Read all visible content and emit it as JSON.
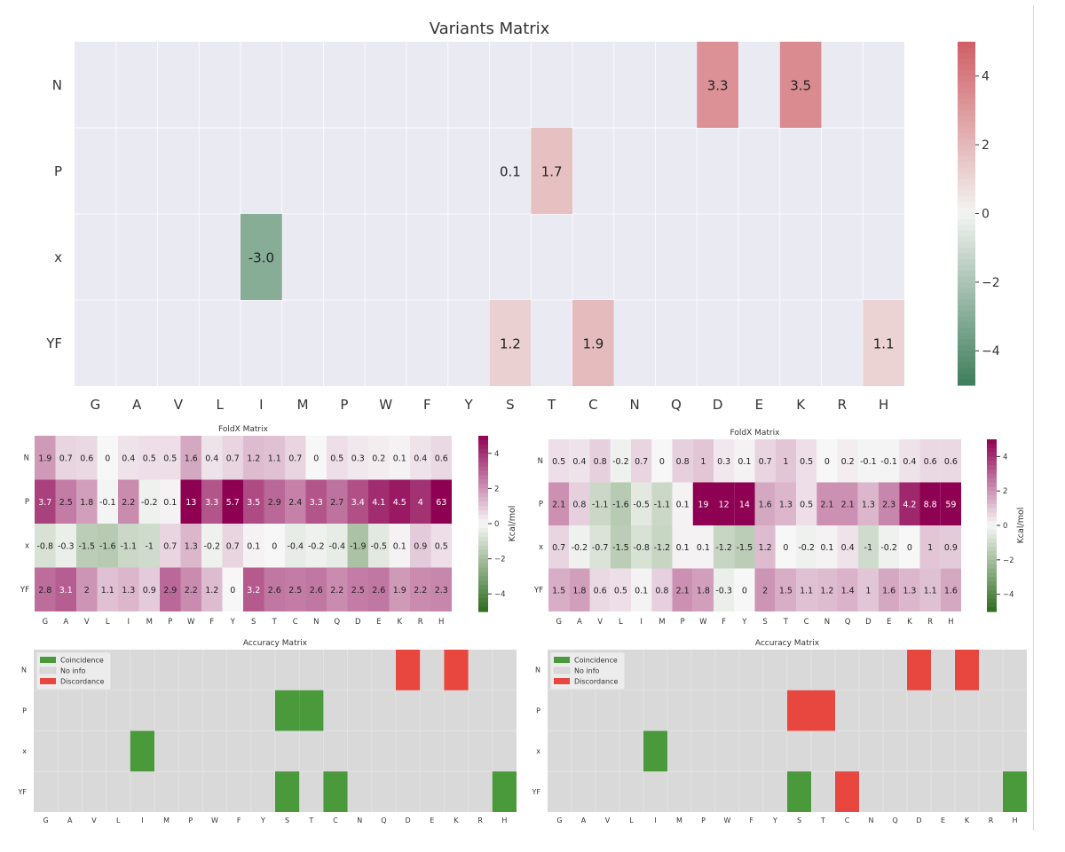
{
  "chart_data": [
    {
      "id": "variants",
      "type": "heatmap",
      "title": "Variants Matrix",
      "x_categories": [
        "G",
        "A",
        "V",
        "L",
        "I",
        "M",
        "P",
        "W",
        "F",
        "Y",
        "S",
        "T",
        "C",
        "N",
        "Q",
        "D",
        "E",
        "K",
        "R",
        "H"
      ],
      "y_categories": [
        "N",
        "P",
        "x",
        "YF"
      ],
      "values": [
        [
          null,
          null,
          null,
          null,
          null,
          null,
          null,
          null,
          null,
          null,
          null,
          null,
          null,
          null,
          null,
          3.3,
          null,
          3.5,
          null,
          null
        ],
        [
          null,
          null,
          null,
          null,
          null,
          null,
          null,
          null,
          null,
          null,
          0.1,
          1.7,
          null,
          null,
          null,
          null,
          null,
          null,
          null,
          null
        ],
        [
          null,
          null,
          null,
          null,
          -3.0,
          null,
          null,
          null,
          null,
          null,
          null,
          null,
          null,
          null,
          null,
          null,
          null,
          null,
          null,
          null
        ],
        [
          null,
          null,
          null,
          null,
          null,
          null,
          null,
          null,
          null,
          null,
          1.2,
          null,
          1.9,
          null,
          null,
          null,
          null,
          null,
          null,
          1.1
        ]
      ],
      "labels": [
        [
          null,
          null,
          null,
          null,
          null,
          null,
          null,
          null,
          null,
          null,
          null,
          null,
          null,
          null,
          null,
          "3.3",
          null,
          "3.5",
          null,
          null
        ],
        [
          null,
          null,
          null,
          null,
          null,
          null,
          null,
          null,
          null,
          null,
          "0.1",
          "1.7",
          null,
          null,
          null,
          null,
          null,
          null,
          null,
          null
        ],
        [
          null,
          null,
          null,
          null,
          "-3.0",
          null,
          null,
          null,
          null,
          null,
          null,
          null,
          null,
          null,
          null,
          null,
          null,
          null,
          null,
          null
        ],
        [
          null,
          null,
          null,
          null,
          null,
          null,
          null,
          null,
          null,
          null,
          "1.2",
          null,
          "1.9",
          null,
          null,
          null,
          null,
          null,
          null,
          "1.1"
        ]
      ],
      "colorbar": {
        "range": [
          -5,
          5
        ],
        "ticks": [
          "4",
          "2",
          "0",
          "−2",
          "−4"
        ],
        "tick_values": [
          4,
          2,
          0,
          -2,
          -4
        ],
        "colormap": "green-white-red",
        "label": ""
      },
      "colors": {
        "low": "#3f7d5b",
        "mid": "#f3f4f2",
        "high": "#cf5e66",
        "background": "#eaeaf2",
        "grid": "#ffffff"
      }
    },
    {
      "id": "foldx_left",
      "type": "heatmap",
      "title": "FoldX Matrix",
      "x_categories": [
        "G",
        "A",
        "V",
        "L",
        "I",
        "M",
        "P",
        "W",
        "F",
        "Y",
        "S",
        "T",
        "C",
        "N",
        "Q",
        "D",
        "E",
        "K",
        "R",
        "H"
      ],
      "y_categories": [
        "N",
        "P",
        "x",
        "YF"
      ],
      "values": [
        [
          1.9,
          0.7,
          0.6,
          0,
          0.4,
          0.5,
          0.5,
          1.6,
          0.4,
          0.7,
          1.2,
          1.1,
          0.7,
          0,
          0.5,
          0.3,
          0.2,
          0.1,
          0.4,
          0.6
        ],
        [
          3.7,
          2.5,
          1.8,
          -0.1,
          2.2,
          -0.2,
          0.1,
          13,
          3.3,
          5.7,
          3.5,
          2.9,
          2.4,
          3.3,
          2.7,
          3.4,
          4.1,
          4.5,
          4,
          63
        ],
        [
          -0.8,
          -0.3,
          -1.5,
          -1.6,
          -1.1,
          -1,
          0.7,
          1.3,
          -0.2,
          0.7,
          0.1,
          0,
          -0.4,
          -0.2,
          -0.4,
          -1.9,
          -0.5,
          0.1,
          0.9,
          0.5
        ],
        [
          2.8,
          3.1,
          2,
          1.1,
          1.3,
          0.9,
          2.9,
          2.2,
          1.2,
          0,
          3.2,
          2.6,
          2.5,
          2.6,
          2.2,
          2.5,
          2.6,
          1.9,
          2.2,
          2.3
        ]
      ],
      "labels": [
        [
          "1.9",
          "0.7",
          "0.6",
          "0",
          "0.4",
          "0.5",
          "0.5",
          "1.6",
          "0.4",
          "0.7",
          "1.2",
          "1.1",
          "0.7",
          "0",
          "0.5",
          "0.3",
          "0.2",
          "0.1",
          "0.4",
          "0.6"
        ],
        [
          "3.7",
          "2.5",
          "1.8",
          "-0.1",
          "2.2",
          "-0.2",
          "0.1",
          "13",
          "3.3",
          "5.7",
          "3.5",
          "2.9",
          "2.4",
          "3.3",
          "2.7",
          "3.4",
          "4.1",
          "4.5",
          "4",
          "63"
        ],
        [
          "-0.8",
          "-0.3",
          "-1.5",
          "-1.6",
          "-1.1",
          "-1",
          "0.7",
          "1.3",
          "-0.2",
          "0.7",
          "0.1",
          "0",
          "-0.4",
          "-0.2",
          "-0.4",
          "-1.9",
          "-0.5",
          "0.1",
          "0.9",
          "0.5"
        ],
        [
          "2.8",
          "3.1",
          "2",
          "1.1",
          "1.3",
          "0.9",
          "2.9",
          "2.2",
          "1.2",
          "0",
          "3.2",
          "2.6",
          "2.5",
          "2.6",
          "2.2",
          "2.5",
          "2.6",
          "1.9",
          "2.2",
          "2.3"
        ]
      ],
      "colorbar": {
        "range": [
          -5,
          5
        ],
        "ticks": [
          "4",
          "2",
          "0",
          "−2",
          "−4"
        ],
        "tick_values": [
          4,
          2,
          0,
          -2,
          -4
        ],
        "colormap": "PiYG",
        "label": "Kcal/mol"
      },
      "colors": {
        "low": "#2e6b1e",
        "mid": "#f7f7f7",
        "high": "#8e0152"
      }
    },
    {
      "id": "foldx_right",
      "type": "heatmap",
      "title": "FoldX Matrix",
      "x_categories": [
        "G",
        "A",
        "V",
        "L",
        "I",
        "M",
        "P",
        "W",
        "F",
        "Y",
        "S",
        "T",
        "C",
        "N",
        "Q",
        "D",
        "E",
        "K",
        "R",
        "H"
      ],
      "y_categories": [
        "N",
        "P",
        "x",
        "YF"
      ],
      "values": [
        [
          0.5,
          0.4,
          0.8,
          -0.2,
          0.7,
          0,
          0.8,
          1,
          0.3,
          0.1,
          0.7,
          1,
          0.5,
          0,
          0.2,
          -0.1,
          -0.1,
          0.4,
          0.6,
          0.6
        ],
        [
          2.1,
          0.8,
          -1.1,
          -1.6,
          -0.5,
          -1.1,
          0.1,
          19,
          12,
          14,
          1.6,
          1.3,
          0.5,
          2.1,
          2.1,
          1.3,
          2.3,
          4.2,
          8.8,
          59
        ],
        [
          0.7,
          -0.2,
          -0.7,
          -1.5,
          -0.8,
          -1.2,
          0.1,
          0.1,
          -1.2,
          -1.5,
          1.2,
          0,
          -0.2,
          0.1,
          0.4,
          -1,
          -0.2,
          0,
          1,
          0.9
        ],
        [
          1.5,
          1.8,
          0.6,
          0.5,
          0.1,
          0.8,
          2.1,
          1.8,
          -0.3,
          0,
          2,
          1.5,
          1.1,
          1.2,
          1.4,
          1,
          1.6,
          1.3,
          1.1,
          1.6
        ]
      ],
      "labels": [
        [
          "0.5",
          "0.4",
          "0.8",
          "-0.2",
          "0.7",
          "0",
          "0.8",
          "1",
          "0.3",
          "0.1",
          "0.7",
          "1",
          "0.5",
          "0",
          "0.2",
          "-0.1",
          "-0.1",
          "0.4",
          "0.6",
          "0.6"
        ],
        [
          "2.1",
          "0.8",
          "-1.1",
          "-1.6",
          "-0.5",
          "-1.1",
          "0.1",
          "19",
          "12",
          "14",
          "1.6",
          "1.3",
          "0.5",
          "2.1",
          "2.1",
          "1.3",
          "2.3",
          "4.2",
          "8.8",
          "59"
        ],
        [
          "0.7",
          "-0.2",
          "-0.7",
          "-1.5",
          "-0.8",
          "-1.2",
          "0.1",
          "0.1",
          "-1.2",
          "-1.5",
          "1.2",
          "0",
          "-0.2",
          "0.1",
          "0.4",
          "-1",
          "-0.2",
          "0",
          "1",
          "0.9"
        ],
        [
          "1.5",
          "1.8",
          "0.6",
          "0.5",
          "0.1",
          "0.8",
          "2.1",
          "1.8",
          "-0.3",
          "0",
          "2",
          "1.5",
          "1.1",
          "1.2",
          "1.4",
          "1",
          "1.6",
          "1.3",
          "1.1",
          "1.6"
        ]
      ],
      "colorbar": {
        "range": [
          -5,
          5
        ],
        "ticks": [
          "4",
          "2",
          "0",
          "−2",
          "−4"
        ],
        "tick_values": [
          4,
          2,
          0,
          -2,
          -4
        ],
        "colormap": "PiYG",
        "label": "Kcal/mol"
      },
      "colors": {
        "low": "#2e6b1e",
        "mid": "#f7f7f7",
        "high": "#8e0152"
      }
    },
    {
      "id": "accuracy_left",
      "type": "heatmap",
      "title": "Accuracy Matrix",
      "x_categories": [
        "G",
        "A",
        "V",
        "L",
        "I",
        "M",
        "P",
        "W",
        "F",
        "Y",
        "S",
        "T",
        "C",
        "N",
        "Q",
        "D",
        "E",
        "K",
        "R",
        "H"
      ],
      "y_categories": [
        "N",
        "P",
        "x",
        "YF"
      ],
      "values": [
        [
          0,
          0,
          0,
          0,
          0,
          0,
          0,
          0,
          0,
          0,
          0,
          0,
          0,
          0,
          0,
          -1,
          0,
          -1,
          0,
          0
        ],
        [
          0,
          0,
          0,
          0,
          0,
          0,
          0,
          0,
          0,
          0,
          1,
          1,
          0,
          0,
          0,
          0,
          0,
          0,
          0,
          0
        ],
        [
          0,
          0,
          0,
          0,
          1,
          0,
          0,
          0,
          0,
          0,
          0,
          0,
          0,
          0,
          0,
          0,
          0,
          0,
          0,
          0
        ],
        [
          0,
          0,
          0,
          0,
          0,
          0,
          0,
          0,
          0,
          0,
          1,
          0,
          1,
          0,
          0,
          0,
          0,
          0,
          0,
          1
        ]
      ],
      "legend": {
        "placement": "top-left",
        "entries": [
          {
            "label": "Coincidence",
            "value": 1
          },
          {
            "label": "No info",
            "value": 0
          },
          {
            "label": "Discordance",
            "value": -1
          }
        ]
      },
      "colors": {
        "coincidence": "#4a9a3b",
        "noinfo": "#d9d9d9",
        "discordance": "#e8473f"
      }
    },
    {
      "id": "accuracy_right",
      "type": "heatmap",
      "title": "Accuracy Matrix",
      "x_categories": [
        "G",
        "A",
        "V",
        "L",
        "I",
        "M",
        "P",
        "W",
        "F",
        "Y",
        "S",
        "T",
        "C",
        "N",
        "Q",
        "D",
        "E",
        "K",
        "R",
        "H"
      ],
      "y_categories": [
        "N",
        "P",
        "x",
        "YF"
      ],
      "values": [
        [
          0,
          0,
          0,
          0,
          0,
          0,
          0,
          0,
          0,
          0,
          0,
          0,
          0,
          0,
          0,
          -1,
          0,
          -1,
          0,
          0
        ],
        [
          0,
          0,
          0,
          0,
          0,
          0,
          0,
          0,
          0,
          0,
          -1,
          -1,
          0,
          0,
          0,
          0,
          0,
          0,
          0,
          0
        ],
        [
          0,
          0,
          0,
          0,
          1,
          0,
          0,
          0,
          0,
          0,
          0,
          0,
          0,
          0,
          0,
          0,
          0,
          0,
          0,
          0
        ],
        [
          0,
          0,
          0,
          0,
          0,
          0,
          0,
          0,
          0,
          0,
          1,
          0,
          -1,
          0,
          0,
          0,
          0,
          0,
          0,
          1
        ]
      ],
      "legend": {
        "placement": "top-left",
        "entries": [
          {
            "label": "Coincidence",
            "value": 1
          },
          {
            "label": "No info",
            "value": 0
          },
          {
            "label": "Discordance",
            "value": -1
          }
        ]
      },
      "colors": {
        "coincidence": "#4a9a3b",
        "noinfo": "#d9d9d9",
        "discordance": "#e8473f"
      }
    }
  ]
}
